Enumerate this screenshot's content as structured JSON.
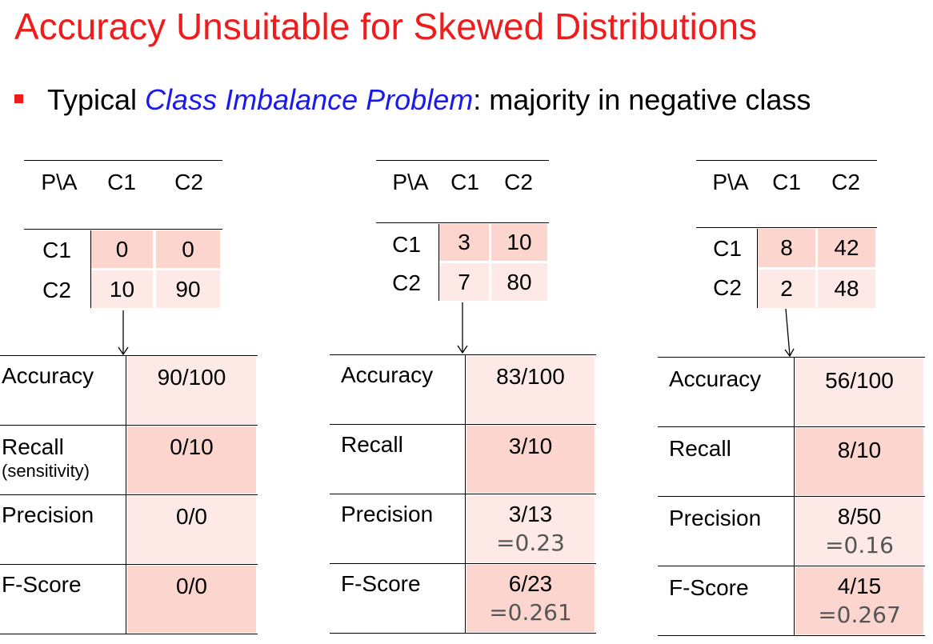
{
  "title": "Accuracy Unsuitable for Skewed Distributions",
  "bullet": {
    "prefix": "Typical ",
    "emphasis": "Class Imbalance Problem",
    "suffix": ": majority in negative class"
  },
  "examples": [
    {
      "matrix": {
        "corner": "P\\A",
        "cols": [
          "C1",
          "C2"
        ],
        "rows": [
          {
            "label": "C1",
            "cells": [
              "0",
              "0"
            ]
          },
          {
            "label": "C2",
            "cells": [
              "10",
              "90"
            ]
          }
        ]
      },
      "metrics": [
        {
          "name": "Accuracy",
          "sub": "",
          "value": "90/100",
          "calc": ""
        },
        {
          "name": "Recall",
          "sub": "(sensitivity)",
          "value": "0/10",
          "calc": ""
        },
        {
          "name": "Precision",
          "sub": "",
          "value": "0/0",
          "calc": ""
        },
        {
          "name": "F-Score",
          "sub": "",
          "value": "0/0",
          "calc": ""
        }
      ]
    },
    {
      "matrix": {
        "corner": "P\\A",
        "cols": [
          "C1",
          "C2"
        ],
        "rows": [
          {
            "label": "C1",
            "cells": [
              "3",
              "10"
            ]
          },
          {
            "label": "C2",
            "cells": [
              "7",
              "80"
            ]
          }
        ]
      },
      "metrics": [
        {
          "name": "Accuracy",
          "sub": "",
          "value": "83/100",
          "calc": ""
        },
        {
          "name": "Recall",
          "sub": "",
          "value": "3/10",
          "calc": ""
        },
        {
          "name": "Precision",
          "sub": "",
          "value": "3/13",
          "calc": "=0.23"
        },
        {
          "name": "F-Score",
          "sub": "",
          "value": "6/23",
          "calc": "=0.261"
        }
      ]
    },
    {
      "matrix": {
        "corner": "P\\A",
        "cols": [
          "C1",
          "C2"
        ],
        "rows": [
          {
            "label": "C1",
            "cells": [
              "8",
              "42"
            ]
          },
          {
            "label": "C2",
            "cells": [
              "2",
              "48"
            ]
          }
        ]
      },
      "metrics": [
        {
          "name": "Accuracy",
          "sub": "",
          "value": "56/100",
          "calc": ""
        },
        {
          "name": "Recall",
          "sub": "",
          "value": "8/10",
          "calc": ""
        },
        {
          "name": "Precision",
          "sub": "",
          "value": "8/50",
          "calc": "=0.16"
        },
        {
          "name": "F-Score",
          "sub": "",
          "value": "4/15",
          "calc": "=0.267"
        }
      ]
    }
  ],
  "colors": {
    "title": "#ee1c1c",
    "emphasis": "#1a1aee",
    "cell_dark": "#fcd5cf",
    "cell_light": "#fdeae7"
  }
}
